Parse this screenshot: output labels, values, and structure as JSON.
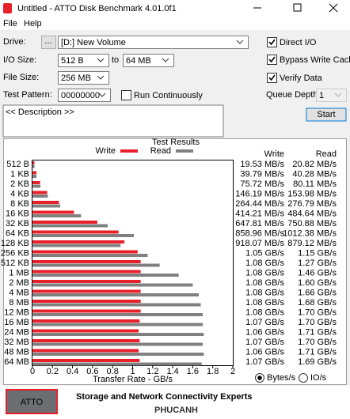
{
  "window": {
    "title": "Untitled - ATTO Disk Benchmark 4.01.0f1"
  },
  "menu": [
    "File",
    "Help"
  ],
  "form": {
    "drive": {
      "label": "Drive:",
      "button": "...",
      "value": "[D:] New Volume"
    },
    "io_size": {
      "label": "I/O Size:",
      "from": "512 B",
      "to_label": "to",
      "to": "64 MB"
    },
    "file_size": {
      "label": "File Size:",
      "value": "256 MB"
    },
    "test_pattern": {
      "label": "Test Pattern:",
      "value": "00000000"
    },
    "run_continuously": {
      "label": "Run Continuously",
      "checked": false
    },
    "direct_io": {
      "label": "Direct I/O",
      "checked": true
    },
    "bypass_write_cache": {
      "label": "Bypass Write Cache",
      "checked": true
    },
    "verify_data": {
      "label": "Verify Data",
      "checked": true
    },
    "queue_depth": {
      "label": "Queue Depth:",
      "value": "1",
      "disabled": true
    },
    "description": "<< Description >>",
    "start": "Start"
  },
  "chart_data": {
    "type": "bar",
    "orientation": "horizontal",
    "title": "Test Results",
    "x_label": "Transfer Rate - GB/s",
    "categories": [
      "512 B",
      "1 KB",
      "2 KB",
      "4 KB",
      "8 KB",
      "16 KB",
      "32 KB",
      "64 KB",
      "128 KB",
      "256 KB",
      "512 KB",
      "1 MB",
      "2 MB",
      "4 MB",
      "8 MB",
      "12 MB",
      "16 MB",
      "24 MB",
      "32 MB",
      "48 MB",
      "64 MB"
    ],
    "series": [
      {
        "name": "Write",
        "color": "#e8202a",
        "values": [
          0.01953,
          0.03979,
          0.07572,
          0.14619,
          0.26444,
          0.41421,
          0.64781,
          0.85896,
          0.91807,
          1.05,
          1.08,
          1.08,
          1.08,
          1.08,
          1.08,
          1.08,
          1.07,
          1.06,
          1.07,
          1.06,
          1.07
        ],
        "value_labels": [
          "19.53 MB/s",
          "39.79 MB/s",
          "75.72 MB/s",
          "146.19 MB/s",
          "264.44 MB/s",
          "414.21 MB/s",
          "647.81 MB/s",
          "858.96 MB/s",
          "918.07 MB/s",
          "1.05 GB/s",
          "1.08 GB/s",
          "1.08 GB/s",
          "1.08 GB/s",
          "1.08 GB/s",
          "1.08 GB/s",
          "1.08 GB/s",
          "1.07 GB/s",
          "1.06 GB/s",
          "1.07 GB/s",
          "1.06 GB/s",
          "1.07 GB/s"
        ]
      },
      {
        "name": "Read",
        "color": "#808080",
        "values": [
          0.02082,
          0.04028,
          0.08011,
          0.15398,
          0.27679,
          0.48464,
          0.75088,
          1.01238,
          0.87912,
          1.15,
          1.27,
          1.46,
          1.6,
          1.66,
          1.68,
          1.7,
          1.7,
          1.71,
          1.7,
          1.71,
          1.69
        ],
        "value_labels": [
          "20.82 MB/s",
          "40.28 MB/s",
          "80.11 MB/s",
          "153.98 MB/s",
          "276.79 MB/s",
          "484.64 MB/s",
          "750.88 MB/s",
          "1012.38 MB/s",
          "879.12 MB/s",
          "1.15 GB/s",
          "1.27 GB/s",
          "1.46 GB/s",
          "1.60 GB/s",
          "1.66 GB/s",
          "1.68 GB/s",
          "1.70 GB/s",
          "1.70 GB/s",
          "1.71 GB/s",
          "1.70 GB/s",
          "1.71 GB/s",
          "1.69 GB/s"
        ]
      }
    ],
    "xlim": [
      0,
      2
    ],
    "xticks": [
      0,
      0.2,
      0.4,
      0.6,
      0.8,
      1,
      1.2,
      1.4,
      1.6,
      1.8,
      2
    ],
    "grid": false
  },
  "units": {
    "options": [
      "Bytes/s",
      "IO/s"
    ],
    "selected": 0
  },
  "footer": {
    "logo": "ATTO",
    "tagline": "Storage and Network Connectivity Experts",
    "watermark": "PHUCANH"
  }
}
